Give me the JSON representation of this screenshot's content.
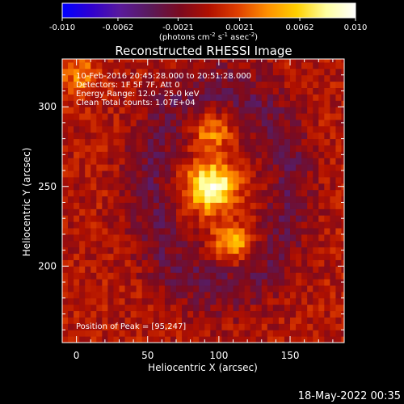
{
  "colorbar": {
    "ticks": [
      "-0.010",
      "-0.0062",
      "-0.0021",
      "0.0021",
      "0.0062",
      "0.010"
    ],
    "units_html": "(photons cm<tspan baseline-shift='super' font-size='7'>-2</tspan> s<tspan baseline-shift='super' font-size='7'>-1</tspan> asec<tspan baseline-shift='super' font-size='7'>-2</tspan>)",
    "range": [
      -0.01,
      0.01
    ],
    "colors": [
      "#0000ff",
      "#3000d0",
      "#5a1a9a",
      "#5a1a5a",
      "#7a0a20",
      "#b01000",
      "#e04000",
      "#ff9000",
      "#ffd000",
      "#ffffa0",
      "#ffffff"
    ]
  },
  "chart_data": {
    "type": "heatmap",
    "title": "Reconstructed RHESSI Image",
    "xlabel": "Heliocentric X (arcsec)",
    "ylabel": "Heliocentric Y (arcsec)",
    "xlim": [
      -10,
      188
    ],
    "ylim": [
      152,
      330
    ],
    "xticks": [
      0,
      50,
      100,
      150
    ],
    "yticks": [
      200,
      250,
      300
    ],
    "info_lines": [
      "10-Feb-2016 20:45:28.000 to 20:51:28.000",
      "Detectors: 1F 5F 7F, Att 0",
      "Energy Range: 12.0 - 25.0 keV",
      "Clean    Total counts: 1.07E+04"
    ],
    "peak_label": "Position of Peak = [95,247]",
    "peak": [
      95,
      247
    ],
    "source_lobes": [
      {
        "x": 95,
        "y": 285,
        "intensity": 0.0045
      },
      {
        "x": 95,
        "y": 250,
        "intensity": 0.01
      },
      {
        "x": 110,
        "y": 215,
        "intensity": 0.006
      },
      {
        "x": 2,
        "y": 320,
        "intensity": 0.0035
      }
    ]
  },
  "timestamp": "18-May-2022 00:35"
}
